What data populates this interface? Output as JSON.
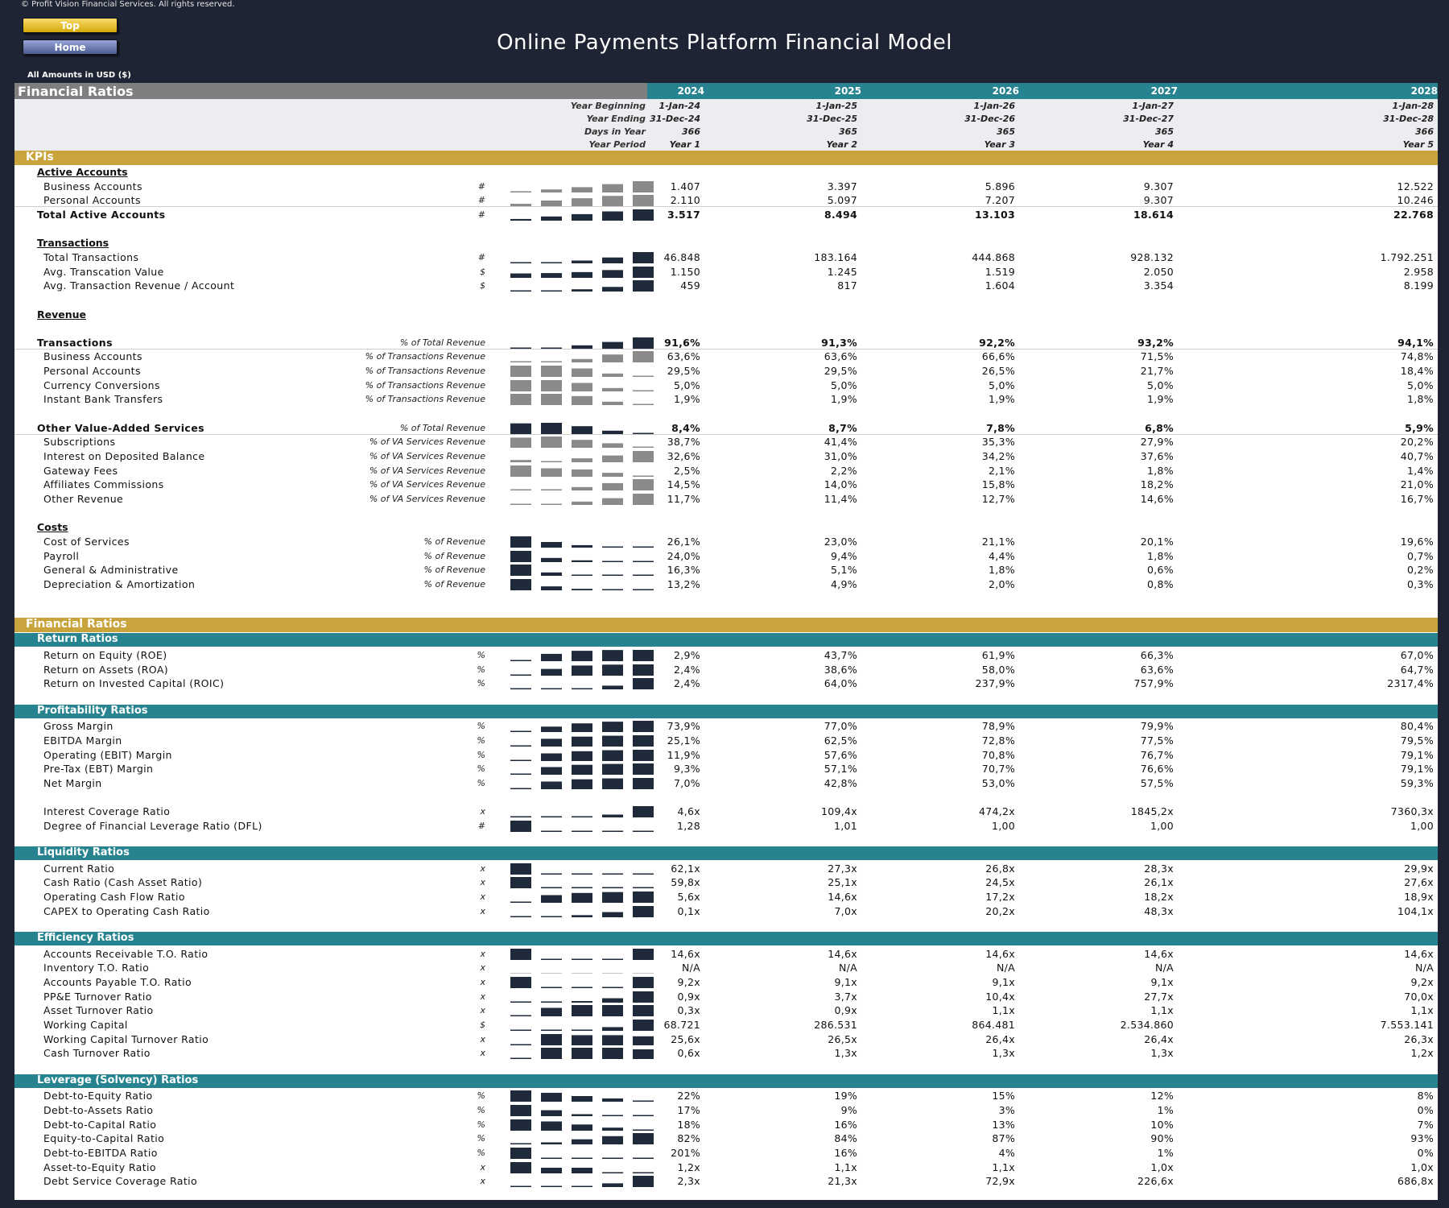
{
  "copyright": "© Profit Vision Financial Services. All rights reserved.",
  "nav": {
    "top_label": "Top",
    "home_label": "Home"
  },
  "title": "Online Payments Platform Financial Model",
  "amounts_note": "All Amounts in  USD ($)",
  "colors": {
    "background": "#1e2433",
    "gold": "#c9a43c",
    "teal": "#26838f",
    "grey": "#7f7f7f",
    "bar_dark": "#1f2a3a",
    "bar_light": "#8a8a8a"
  },
  "header": {
    "title": "Financial Ratios",
    "years": [
      "2024",
      "2025",
      "2026",
      "2027",
      "2028"
    ],
    "meta_labels": [
      "Year Beginning",
      "Year Ending",
      "Days in Year",
      "Year Period"
    ],
    "year_beginning": [
      "1-Jan-24",
      "1-Jan-25",
      "1-Jan-26",
      "1-Jan-27",
      "1-Jan-28"
    ],
    "year_ending": [
      "31-Dec-24",
      "31-Dec-25",
      "31-Dec-26",
      "31-Dec-27",
      "31-Dec-28"
    ],
    "days_in_year": [
      "366",
      "365",
      "365",
      "365",
      "366"
    ],
    "year_period": [
      "Year 1",
      "Year 2",
      "Year 3",
      "Year 4",
      "Year 5"
    ]
  },
  "sections": {
    "kpis": "KPIs",
    "financial_ratios": "Financial Ratios",
    "return_ratios": "Return Ratios",
    "profitability_ratios": "Profitability Ratios",
    "liquidity_ratios": "Liquidity Ratios",
    "efficiency_ratios": "Efficiency Ratios",
    "leverage_ratios": "Leverage (Solvency) Ratios"
  },
  "rows": [
    {
      "type": "head",
      "label": "Active Accounts"
    },
    {
      "label": "Business Accounts",
      "unit": "#",
      "values": [
        "1.407",
        "3.397",
        "5.896",
        "9.307",
        "12.522"
      ],
      "spark": [
        0.11,
        0.27,
        0.47,
        0.74,
        1.0
      ],
      "style": "light"
    },
    {
      "label": "Personal Accounts",
      "unit": "#",
      "values": [
        "2.110",
        "5.097",
        "7.207",
        "9.307",
        "10.246"
      ],
      "spark": [
        0.21,
        0.5,
        0.7,
        0.91,
        1.0
      ],
      "style": "light",
      "underline": true
    },
    {
      "label": "Total Active Accounts",
      "unit": "#",
      "values": [
        "3.517",
        "8.494",
        "13.103",
        "18.614",
        "22.768"
      ],
      "spark": [
        0.15,
        0.37,
        0.58,
        0.82,
        1.0
      ],
      "style": "dark",
      "bold": true
    },
    {
      "type": "blank"
    },
    {
      "type": "head",
      "label": "Transactions"
    },
    {
      "label": "Total Transactions",
      "unit": "#",
      "values": [
        "46.848",
        "183.164",
        "444.868",
        "928.132",
        "1.792.251"
      ],
      "spark": [
        0.03,
        0.1,
        0.25,
        0.52,
        1.0
      ],
      "style": "dark"
    },
    {
      "label": "Avg. Transcation Value",
      "unit": "$",
      "values": [
        "1.150",
        "1.245",
        "1.519",
        "2.050",
        "2.958"
      ],
      "spark": [
        0.39,
        0.42,
        0.51,
        0.69,
        1.0
      ],
      "style": "dark"
    },
    {
      "label": "Avg. Transaction Revenue / Account",
      "unit": "$",
      "values": [
        "459",
        "817",
        "1.604",
        "3.354",
        "8.199"
      ],
      "spark": [
        0.06,
        0.1,
        0.2,
        0.41,
        1.0
      ],
      "style": "dark"
    },
    {
      "type": "blank"
    },
    {
      "type": "head",
      "label": "Revenue"
    },
    {
      "type": "blank"
    },
    {
      "label": "Transactions",
      "unit": "% of Total Revenue",
      "values": [
        "91,6%",
        "91,3%",
        "92,2%",
        "93,2%",
        "94,1%"
      ],
      "spark": [
        0.05,
        0.03,
        0.3,
        0.6,
        1.0
      ],
      "style": "dark",
      "bold": true,
      "underline": true
    },
    {
      "label": "Business Accounts",
      "unit": "% of Transactions Revenue",
      "values": [
        "63,6%",
        "63,6%",
        "66,6%",
        "71,5%",
        "74,8%"
      ],
      "spark": [
        0.05,
        0.05,
        0.3,
        0.7,
        1.0
      ],
      "style": "light"
    },
    {
      "label": "Personal Accounts",
      "unit": "% of Transactions Revenue",
      "values": [
        "29,5%",
        "29,5%",
        "26,5%",
        "21,7%",
        "18,4%"
      ],
      "spark": [
        1.0,
        1.0,
        0.75,
        0.3,
        0.05
      ],
      "style": "light"
    },
    {
      "label": "Currency Conversions",
      "unit": "% of Transactions Revenue",
      "values": [
        "5,0%",
        "5,0%",
        "5,0%",
        "5,0%",
        "5,0%"
      ],
      "spark": [
        1.0,
        1.0,
        0.75,
        0.3,
        0.05
      ],
      "style": "light"
    },
    {
      "label": "Instant Bank Transfers",
      "unit": "% of Transactions Revenue",
      "values": [
        "1,9%",
        "1,9%",
        "1,9%",
        "1,9%",
        "1,8%"
      ],
      "spark": [
        1.0,
        1.0,
        0.8,
        0.3,
        0.05
      ],
      "style": "light"
    },
    {
      "type": "blank"
    },
    {
      "label": "Other Value-Added Services",
      "unit": "% of Total Revenue",
      "values": [
        "8,4%",
        "8,7%",
        "7,8%",
        "6,8%",
        "5,9%"
      ],
      "spark": [
        0.95,
        1.0,
        0.7,
        0.3,
        0.05
      ],
      "style": "dark",
      "bold": true,
      "underline": true
    },
    {
      "label": "Subscriptions",
      "unit": "% of VA Services Revenue",
      "values": [
        "38,7%",
        "41,4%",
        "35,3%",
        "27,9%",
        "20,2%"
      ],
      "spark": [
        0.9,
        1.0,
        0.7,
        0.4,
        0.05
      ],
      "style": "light"
    },
    {
      "label": "Interest on Deposited Balance",
      "unit": "% of VA Services Revenue",
      "values": [
        "32,6%",
        "31,0%",
        "34,2%",
        "37,6%",
        "40,7%"
      ],
      "spark": [
        0.2,
        0.05,
        0.35,
        0.6,
        1.0
      ],
      "style": "light"
    },
    {
      "label": "Gateway Fees",
      "unit": "% of VA Services Revenue",
      "values": [
        "2,5%",
        "2,2%",
        "2,1%",
        "1,8%",
        "1,4%"
      ],
      "spark": [
        1.0,
        0.75,
        0.65,
        0.35,
        0.05
      ],
      "style": "light"
    },
    {
      "label": "Affiliates Commissions",
      "unit": "% of VA Services Revenue",
      "values": [
        "14,5%",
        "14,0%",
        "15,8%",
        "18,2%",
        "21,0%"
      ],
      "spark": [
        0.1,
        0.05,
        0.3,
        0.65,
        1.0
      ],
      "style": "light"
    },
    {
      "label": "Other Revenue",
      "unit": "% of VA Services Revenue",
      "values": [
        "11,7%",
        "11,4%",
        "12,7%",
        "14,6%",
        "16,7%"
      ],
      "spark": [
        0.08,
        0.05,
        0.3,
        0.6,
        1.0
      ],
      "style": "light"
    },
    {
      "type": "blank"
    },
    {
      "type": "head",
      "label": "Costs"
    },
    {
      "label": "Cost of Services",
      "unit": "% of Revenue",
      "values": [
        "26,1%",
        "23,0%",
        "21,1%",
        "20,1%",
        "19,6%"
      ],
      "spark": [
        1.0,
        0.5,
        0.22,
        0.08,
        0.0
      ],
      "style": "dark"
    },
    {
      "label": "Payroll",
      "unit": "% of Revenue",
      "values": [
        "24,0%",
        "9,4%",
        "4,4%",
        "1,8%",
        "0,7%"
      ],
      "spark": [
        1.0,
        0.37,
        0.16,
        0.05,
        0.0
      ],
      "style": "dark"
    },
    {
      "label": "General & Administrative",
      "unit": "% of Revenue",
      "values": [
        "16,3%",
        "5,1%",
        "1,8%",
        "0,6%",
        "0,2%"
      ],
      "spark": [
        1.0,
        0.3,
        0.1,
        0.02,
        0.0
      ],
      "style": "dark"
    },
    {
      "label": "Depreciation & Amortization",
      "unit": "% of Revenue",
      "values": [
        "13,2%",
        "4,9%",
        "2,0%",
        "0,8%",
        "0,3%"
      ],
      "spark": [
        1.0,
        0.35,
        0.13,
        0.04,
        0.0
      ],
      "style": "dark"
    },
    {
      "type": "blank"
    },
    {
      "type": "blank"
    },
    {
      "type": "gold",
      "key": "financial_ratios"
    },
    {
      "type": "teal",
      "key": "return_ratios"
    },
    {
      "label": "Return on Equity (ROE)",
      "unit": "%",
      "values": [
        "2,9%",
        "43,7%",
        "61,9%",
        "66,3%",
        "67,0%"
      ],
      "spark": [
        0.0,
        0.65,
        0.92,
        0.99,
        1.0
      ],
      "style": "dark"
    },
    {
      "label": "Return on Assets (ROA)",
      "unit": "%",
      "values": [
        "2,4%",
        "38,6%",
        "58,0%",
        "63,6%",
        "64,7%"
      ],
      "spark": [
        0.0,
        0.6,
        0.9,
        0.98,
        1.0
      ],
      "style": "dark"
    },
    {
      "label": "Return on Invested Capital (ROIC)",
      "unit": "%",
      "values": [
        "2,4%",
        "64,0%",
        "237,9%",
        "757,9%",
        "2317,4%"
      ],
      "spark": [
        0.0,
        0.03,
        0.1,
        0.33,
        1.0
      ],
      "style": "dark"
    },
    {
      "type": "blank"
    },
    {
      "type": "teal",
      "key": "profitability_ratios"
    },
    {
      "label": "Gross Margin",
      "unit": "%",
      "values": [
        "73,9%",
        "77,0%",
        "78,9%",
        "79,9%",
        "80,4%"
      ],
      "spark": [
        0.0,
        0.48,
        0.77,
        0.92,
        1.0
      ],
      "style": "dark"
    },
    {
      "label": "EBITDA Margin",
      "unit": "%",
      "values": [
        "25,1%",
        "62,5%",
        "72,8%",
        "77,5%",
        "79,5%"
      ],
      "spark": [
        0.0,
        0.69,
        0.88,
        0.96,
        1.0
      ],
      "style": "dark"
    },
    {
      "label": "Operating (EBIT) Margin",
      "unit": "%",
      "values": [
        "11,9%",
        "57,6%",
        "70,8%",
        "76,7%",
        "79,1%"
      ],
      "spark": [
        0.0,
        0.68,
        0.87,
        0.96,
        1.0
      ],
      "style": "dark"
    },
    {
      "label": "Pre-Tax (EBT) Margin",
      "unit": "%",
      "values": [
        "9,3%",
        "57,1%",
        "70,7%",
        "76,6%",
        "79,1%"
      ],
      "spark": [
        0.0,
        0.68,
        0.88,
        0.96,
        1.0
      ],
      "style": "dark"
    },
    {
      "label": "Net Margin",
      "unit": "%",
      "values": [
        "7,0%",
        "42,8%",
        "53,0%",
        "57,5%",
        "59,3%"
      ],
      "spark": [
        0.0,
        0.68,
        0.88,
        0.96,
        1.0
      ],
      "style": "dark"
    },
    {
      "type": "blank"
    },
    {
      "label": "Interest Coverage Ratio",
      "unit": "x",
      "values": [
        "4,6x",
        "109,4x",
        "474,2x",
        "1845,2x",
        "7360,3x"
      ],
      "spark": [
        0.0,
        0.01,
        0.06,
        0.25,
        1.0
      ],
      "style": "dark"
    },
    {
      "label": "Degree of Financial Leverage Ratio (DFL)",
      "unit": "#",
      "values": [
        "1,28",
        "1,01",
        "1,00",
        "1,00",
        "1,00"
      ],
      "spark": [
        1.0,
        0.04,
        0.0,
        0.0,
        0.0
      ],
      "style": "dark"
    },
    {
      "type": "blank"
    },
    {
      "type": "teal",
      "key": "liquidity_ratios"
    },
    {
      "label": "Current Ratio",
      "unit": "x",
      "values": [
        "62,1x",
        "27,3x",
        "26,8x",
        "28,3x",
        "29,9x"
      ],
      "spark": [
        1.0,
        0.01,
        0.0,
        0.04,
        0.09
      ],
      "style": "dark"
    },
    {
      "label": "Cash Ratio (Cash Asset Ratio)",
      "unit": "x",
      "values": [
        "59,8x",
        "25,1x",
        "24,5x",
        "26,1x",
        "27,6x"
      ],
      "spark": [
        1.0,
        0.02,
        0.0,
        0.05,
        0.09
      ],
      "style": "dark"
    },
    {
      "label": "Operating Cash Flow Ratio",
      "unit": "x",
      "values": [
        "5,6x",
        "14,6x",
        "17,2x",
        "18,2x",
        "18,9x"
      ],
      "spark": [
        0.0,
        0.68,
        0.87,
        0.95,
        1.0
      ],
      "style": "dark"
    },
    {
      "label": "CAPEX to Operating Cash Ratio",
      "unit": "x",
      "values": [
        "0,1x",
        "7,0x",
        "20,2x",
        "48,3x",
        "104,1x"
      ],
      "spark": [
        0.0,
        0.07,
        0.19,
        0.46,
        1.0
      ],
      "style": "dark"
    },
    {
      "type": "blank"
    },
    {
      "type": "teal",
      "key": "efficiency_ratios"
    },
    {
      "label": "Accounts Receivable T.O. Ratio",
      "unit": "x",
      "values": [
        "14,6x",
        "14,6x",
        "14,6x",
        "14,6x",
        "14,6x"
      ],
      "spark": [
        1.0,
        0.0,
        0.0,
        0.0,
        1.0
      ],
      "style": "dark"
    },
    {
      "label": "Inventory T.O. Ratio",
      "unit": "x",
      "values": [
        "N/A",
        "N/A",
        "N/A",
        "N/A",
        "N/A"
      ],
      "spark": [
        0,
        0,
        0,
        0,
        0
      ],
      "style": "none"
    },
    {
      "label": "Accounts Payable T.O. Ratio",
      "unit": "x",
      "values": [
        "9,2x",
        "9,1x",
        "9,1x",
        "9,1x",
        "9,2x"
      ],
      "spark": [
        1.0,
        0.0,
        0.0,
        0.0,
        1.0
      ],
      "style": "dark"
    },
    {
      "label": "PP&E Turnover Ratio",
      "unit": "x",
      "values": [
        "0,9x",
        "3,7x",
        "10,4x",
        "27,7x",
        "70,0x"
      ],
      "spark": [
        0.0,
        0.04,
        0.14,
        0.39,
        1.0
      ],
      "style": "dark"
    },
    {
      "label": "Asset Turnover Ratio",
      "unit": "x",
      "values": [
        "0,3x",
        "0,9x",
        "1,1x",
        "1,1x",
        "1,1x"
      ],
      "spark": [
        0.0,
        0.75,
        1.0,
        1.0,
        1.0
      ],
      "style": "dark"
    },
    {
      "label": "Working Capital",
      "unit": "$",
      "values": [
        "68.721",
        "286.531",
        "864.481",
        "2.534.860",
        "7.553.141"
      ],
      "spark": [
        0.0,
        0.03,
        0.11,
        0.33,
        1.0
      ],
      "style": "dark"
    },
    {
      "label": "Working Capital Turnover Ratio",
      "unit": "x",
      "values": [
        "25,6x",
        "26,5x",
        "26,4x",
        "26,4x",
        "26,3x"
      ],
      "spark": [
        0.0,
        1.0,
        0.9,
        0.9,
        0.8
      ],
      "style": "dark"
    },
    {
      "label": "Cash Turnover Ratio",
      "unit": "x",
      "values": [
        "0,6x",
        "1,3x",
        "1,3x",
        "1,3x",
        "1,2x"
      ],
      "spark": [
        0.0,
        1.0,
        1.0,
        1.0,
        0.86
      ],
      "style": "dark"
    },
    {
      "type": "blank"
    },
    {
      "type": "teal",
      "key": "leverage_ratios"
    },
    {
      "label": "Debt-to-Equity Ratio",
      "unit": "%",
      "values": [
        "22%",
        "19%",
        "15%",
        "12%",
        "8%"
      ],
      "spark": [
        1.0,
        0.79,
        0.5,
        0.29,
        0.0
      ],
      "style": "dark"
    },
    {
      "label": "Debt-to-Assets Ratio",
      "unit": "%",
      "values": [
        "17%",
        "9%",
        "3%",
        "1%",
        "0%"
      ],
      "spark": [
        1.0,
        0.53,
        0.18,
        0.06,
        0.0
      ],
      "style": "dark"
    },
    {
      "label": "Debt-to-Capital Ratio",
      "unit": "%",
      "values": [
        "18%",
        "16%",
        "13%",
        "10%",
        "7%"
      ],
      "spark": [
        1.0,
        0.82,
        0.55,
        0.27,
        0.0
      ],
      "style": "dark"
    },
    {
      "label": "Equity-to-Capital Ratio",
      "unit": "%",
      "values": [
        "82%",
        "84%",
        "87%",
        "90%",
        "93%"
      ],
      "spark": [
        0.0,
        0.18,
        0.45,
        0.73,
        1.0
      ],
      "style": "dark"
    },
    {
      "label": "Debt-to-EBITDA Ratio",
      "unit": "%",
      "values": [
        "201%",
        "16%",
        "4%",
        "1%",
        "0%"
      ],
      "spark": [
        1.0,
        0.08,
        0.02,
        0.0,
        0.0
      ],
      "style": "dark"
    },
    {
      "label": "Asset-to-Equity Ratio",
      "unit": "x",
      "values": [
        "1,2x",
        "1,1x",
        "1,1x",
        "1,0x",
        "1,0x"
      ],
      "spark": [
        1.0,
        0.5,
        0.5,
        0.0,
        0.0
      ],
      "style": "dark"
    },
    {
      "label": "Debt Service Coverage Ratio",
      "unit": "x",
      "values": [
        "2,3x",
        "21,3x",
        "72,9x",
        "226,6x",
        "686,8x"
      ],
      "spark": [
        0.0,
        0.03,
        0.1,
        0.33,
        1.0
      ],
      "style": "dark"
    }
  ]
}
